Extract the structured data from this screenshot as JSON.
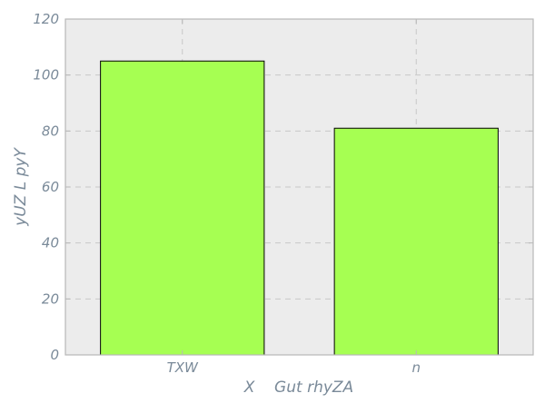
{
  "chart_data": {
    "type": "bar",
    "categories": [
      "TXW",
      "n"
    ],
    "values": [
      105,
      81
    ],
    "title": "",
    "xlabel": "X    Gut rhyZA",
    "ylabel": "yUZ L pyY",
    "ylim": [
      0,
      120
    ],
    "yticks": [
      0,
      20,
      40,
      60,
      80,
      100,
      120
    ],
    "grid": true,
    "colors": {
      "bar_fill": "#a6ff52",
      "bar_edge": "#000000",
      "plot_background": "#ececec",
      "grid": "#c8c8c8",
      "spine": "#b8b8b8",
      "text": "#7a8a99"
    }
  }
}
